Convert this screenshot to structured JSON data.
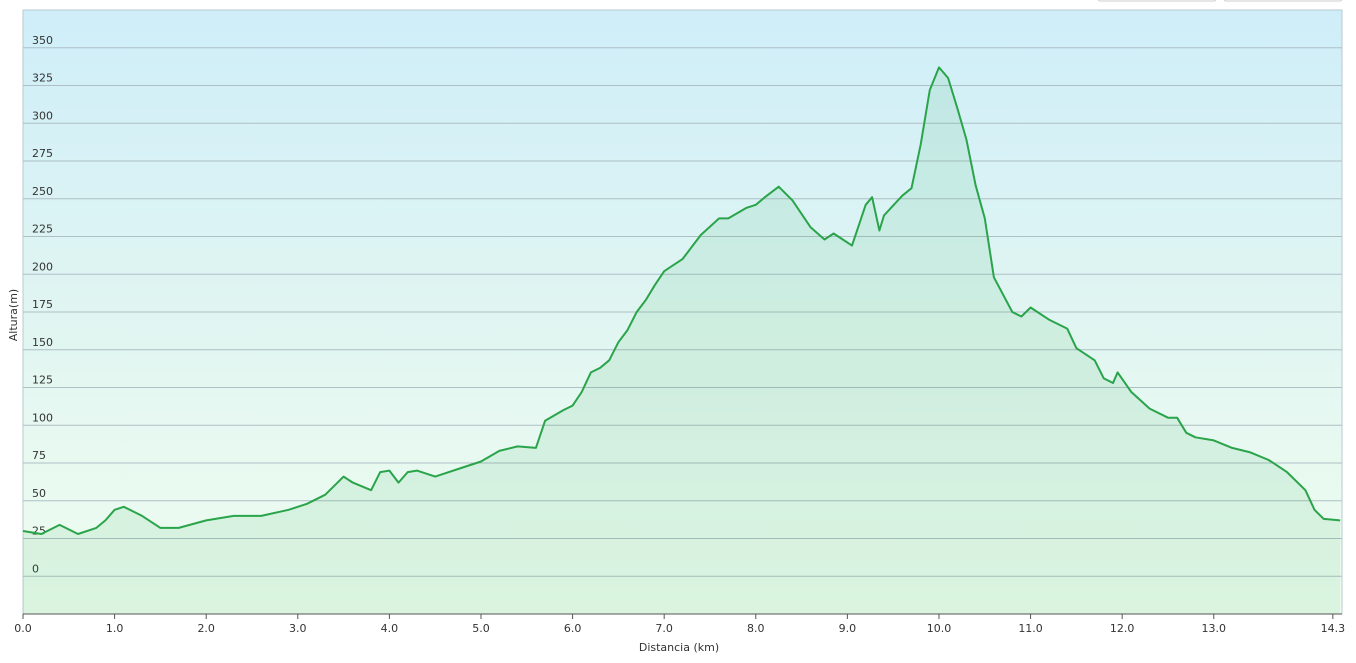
{
  "chart_data": {
    "type": "area",
    "xlabel": "Distancia  (km)",
    "ylabel": "Altura(m)",
    "color": "#2aa44a",
    "x": [
      0,
      0.2,
      0.4,
      0.6,
      0.8,
      0.9,
      1.0,
      1.1,
      1.3,
      1.5,
      1.7,
      2.0,
      2.3,
      2.6,
      2.9,
      3.1,
      3.3,
      3.5,
      3.6,
      3.8,
      3.9,
      4.0,
      4.1,
      4.2,
      4.3,
      4.5,
      4.8,
      5.0,
      5.2,
      5.4,
      5.6,
      5.7,
      5.9,
      6.0,
      6.1,
      6.2,
      6.3,
      6.4,
      6.5,
      6.6,
      6.7,
      6.8,
      6.9,
      7.0,
      7.2,
      7.4,
      7.6,
      7.7,
      7.9,
      8.0,
      8.1,
      8.25,
      8.4,
      8.6,
      8.75,
      8.85,
      8.95,
      9.05,
      9.2,
      9.27,
      9.35,
      9.4,
      9.6,
      9.7,
      9.8,
      9.9,
      10.0,
      10.1,
      10.2,
      10.3,
      10.4,
      10.5,
      10.6,
      10.8,
      10.9,
      11.0,
      11.2,
      11.4,
      11.5,
      11.7,
      11.8,
      11.9,
      11.95,
      12.1,
      12.3,
      12.5,
      12.6,
      12.7,
      12.8,
      13.0,
      13.2,
      13.4,
      13.6,
      13.8,
      14.0,
      14.1,
      14.2,
      14.38
    ],
    "values": [
      30,
      28,
      34,
      28,
      32,
      37,
      44,
      46,
      40,
      32,
      32,
      37,
      40,
      40,
      44,
      48,
      54,
      66,
      62,
      57,
      69,
      70,
      62,
      69,
      70,
      66,
      72,
      76,
      83,
      86,
      85,
      103,
      110,
      113,
      122,
      135,
      138,
      143,
      155,
      163,
      175,
      183,
      193,
      202,
      210,
      226,
      237,
      237,
      244,
      246,
      251,
      258,
      249,
      231,
      223,
      227,
      223,
      219,
      246,
      251,
      229,
      239,
      252,
      257,
      286,
      322,
      337,
      330,
      310,
      289,
      259,
      237,
      198,
      175,
      172,
      178,
      170,
      164,
      151,
      143,
      131,
      128,
      135,
      122,
      111,
      105,
      105,
      95,
      92,
      90,
      85,
      82,
      77,
      69,
      57,
      44,
      38,
      37
    ],
    "xlim": [
      0,
      14.4
    ],
    "xticks": [
      {
        "value": 0,
        "label": "0.0"
      },
      {
        "value": 1,
        "label": "1.0"
      },
      {
        "value": 2,
        "label": "2.0"
      },
      {
        "value": 3,
        "label": "3.0"
      },
      {
        "value": 4,
        "label": "4.0"
      },
      {
        "value": 5,
        "label": "5.0"
      },
      {
        "value": 6,
        "label": "6.0"
      },
      {
        "value": 7,
        "label": "7.0"
      },
      {
        "value": 8,
        "label": "8.0"
      },
      {
        "value": 9,
        "label": "9.0"
      },
      {
        "value": 10,
        "label": "10.0"
      },
      {
        "value": 11,
        "label": "11.0"
      },
      {
        "value": 12,
        "label": "12.0"
      },
      {
        "value": 13,
        "label": "13.0"
      },
      14.3
    ],
    "ylim": [
      -25,
      375
    ],
    "yticks": [
      0,
      25,
      50,
      75,
      100,
      125,
      150,
      175,
      200,
      225,
      250,
      275,
      300,
      325,
      350
    ],
    "grid": true
  }
}
